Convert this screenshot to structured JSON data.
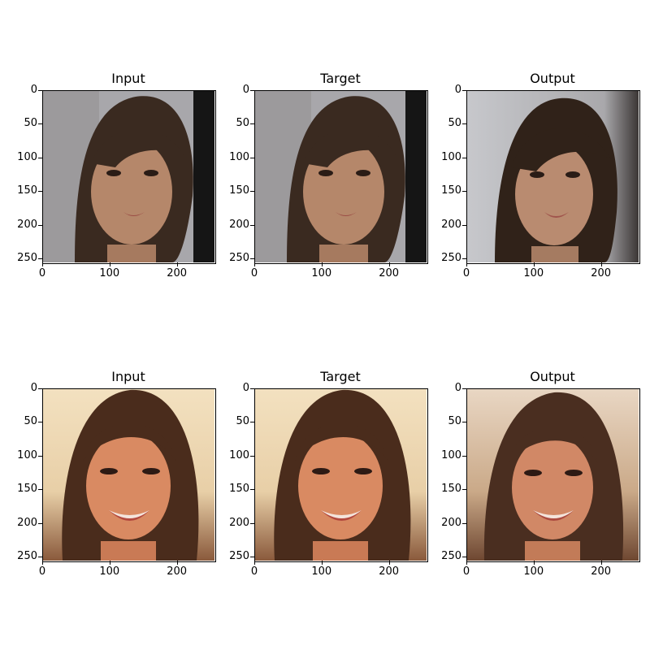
{
  "figure": {
    "rows": [
      {
        "panels": [
          {
            "title": "Input",
            "scene": "face-1",
            "dark_edge": true
          },
          {
            "title": "Target",
            "scene": "face-1",
            "dark_edge": true
          },
          {
            "title": "Output",
            "scene": "face-1-generated",
            "dark_edge": false
          }
        ]
      },
      {
        "panels": [
          {
            "title": "Input",
            "scene": "face-2",
            "dark_edge": false
          },
          {
            "title": "Target",
            "scene": "face-2",
            "dark_edge": false
          },
          {
            "title": "Output",
            "scene": "face-2-generated",
            "dark_edge": false
          }
        ]
      }
    ],
    "y_ticks": [
      "0",
      "50",
      "100",
      "150",
      "200",
      "250"
    ],
    "x_ticks": [
      "0",
      "100",
      "200"
    ],
    "colors": {
      "face1_background": "#a8a7ab",
      "face1_hair": "#3a2a20",
      "face1_skin": "#b5876a",
      "face2_background": "#f3e1c0",
      "face2_hair": "#4a2c1c",
      "face2_skin": "#d98a62"
    }
  }
}
